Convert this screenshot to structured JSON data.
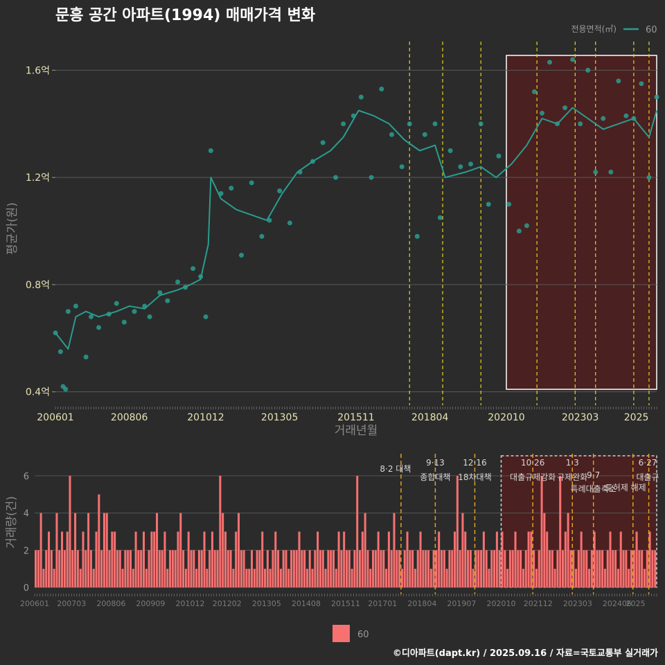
{
  "title": "문흥 공간 아파트(1994) 매매가격 변화",
  "footer": "©디아파트(dapt.kr) / 2025.09.16 / 자료=국토교통부 실거래가",
  "colors": {
    "background": "#2b2b2b",
    "series": "#2a9d8f",
    "bars": "#f87171",
    "highlight_fill": "#5a1d1d",
    "policy_line": "#e6d320",
    "title": "#ffffff",
    "tick": "#e8e3b5"
  },
  "chart_data": [
    {
      "type": "line",
      "title": "문흥 공간 아파트(1994) 매매가격 변화",
      "xlabel": "거래년월",
      "ylabel": "평균가(원)",
      "x_range": [
        "2006-01",
        "2025-09"
      ],
      "ylim": [
        0.35,
        1.72
      ],
      "y_unit": "억",
      "y_ticks": [
        "0.4억",
        "0.8억",
        "1.2억",
        "1.6억"
      ],
      "y_tick_values": [
        0.4,
        0.8,
        1.2,
        1.6
      ],
      "x_ticks": [
        "200601",
        "200806",
        "201012",
        "201305",
        "201511",
        "201804",
        "202010",
        "202303",
        "2025"
      ],
      "grid": true,
      "legend": {
        "title": "전용면적(㎡)",
        "placement": "top-right",
        "entries": [
          "60"
        ]
      },
      "highlight_range": [
        "2020-10",
        "2025-09"
      ],
      "policy_dates": [
        "2017-08",
        "2018-09",
        "2019-12",
        "2021-10",
        "2023-01",
        "2023-09",
        "2024-12",
        "2025-06"
      ],
      "series": [
        {
          "name": "60",
          "trend": [
            [
              "2006-01",
              0.62
            ],
            [
              "2006-06",
              0.56
            ],
            [
              "2006-09",
              0.68
            ],
            [
              "2007-01",
              0.7
            ],
            [
              "2007-06",
              0.68
            ],
            [
              "2008-01",
              0.7
            ],
            [
              "2008-06",
              0.72
            ],
            [
              "2008-12",
              0.71
            ],
            [
              "2009-06",
              0.76
            ],
            [
              "2010-01",
              0.78
            ],
            [
              "2010-06",
              0.8
            ],
            [
              "2010-10",
              0.82
            ],
            [
              "2011-01",
              0.95
            ],
            [
              "2011-02",
              1.2
            ],
            [
              "2011-06",
              1.12
            ],
            [
              "2011-12",
              1.08
            ],
            [
              "2012-06",
              1.06
            ],
            [
              "2012-12",
              1.04
            ],
            [
              "2013-06",
              1.14
            ],
            [
              "2013-12",
              1.22
            ],
            [
              "2014-06",
              1.26
            ],
            [
              "2015-01",
              1.3
            ],
            [
              "2015-06",
              1.35
            ],
            [
              "2015-12",
              1.45
            ],
            [
              "2016-06",
              1.43
            ],
            [
              "2016-12",
              1.4
            ],
            [
              "2017-06",
              1.34
            ],
            [
              "2017-12",
              1.3
            ],
            [
              "2018-06",
              1.32
            ],
            [
              "2018-10",
              1.2
            ],
            [
              "2019-06",
              1.22
            ],
            [
              "2019-12",
              1.24
            ],
            [
              "2020-06",
              1.2
            ],
            [
              "2020-12",
              1.25
            ],
            [
              "2021-06",
              1.32
            ],
            [
              "2021-12",
              1.42
            ],
            [
              "2022-06",
              1.4
            ],
            [
              "2022-12",
              1.46
            ],
            [
              "2023-06",
              1.42
            ],
            [
              "2023-12",
              1.38
            ],
            [
              "2024-06",
              1.4
            ],
            [
              "2024-12",
              1.42
            ],
            [
              "2025-06",
              1.35
            ],
            [
              "2025-09",
              1.45
            ]
          ],
          "points": [
            [
              "2006-01",
              0.62
            ],
            [
              "2006-03",
              0.55
            ],
            [
              "2006-04",
              0.42
            ],
            [
              "2006-05",
              0.41
            ],
            [
              "2006-06",
              0.7
            ],
            [
              "2006-09",
              0.72
            ],
            [
              "2007-01",
              0.53
            ],
            [
              "2007-03",
              0.68
            ],
            [
              "2007-06",
              0.64
            ],
            [
              "2007-10",
              0.69
            ],
            [
              "2008-01",
              0.73
            ],
            [
              "2008-04",
              0.66
            ],
            [
              "2008-08",
              0.7
            ],
            [
              "2008-12",
              0.72
            ],
            [
              "2009-02",
              0.68
            ],
            [
              "2009-06",
              0.77
            ],
            [
              "2009-09",
              0.74
            ],
            [
              "2010-01",
              0.81
            ],
            [
              "2010-04",
              0.79
            ],
            [
              "2010-07",
              0.86
            ],
            [
              "2010-10",
              0.83
            ],
            [
              "2010-12",
              0.68
            ],
            [
              "2011-02",
              1.3
            ],
            [
              "2011-06",
              1.14
            ],
            [
              "2011-10",
              1.16
            ],
            [
              "2012-02",
              0.91
            ],
            [
              "2012-06",
              1.18
            ],
            [
              "2012-10",
              0.98
            ],
            [
              "2013-01",
              1.04
            ],
            [
              "2013-05",
              1.15
            ],
            [
              "2013-09",
              1.03
            ],
            [
              "2014-01",
              1.22
            ],
            [
              "2014-06",
              1.26
            ],
            [
              "2014-10",
              1.33
            ],
            [
              "2015-03",
              1.2
            ],
            [
              "2015-06",
              1.4
            ],
            [
              "2015-10",
              1.43
            ],
            [
              "2016-01",
              1.5
            ],
            [
              "2016-05",
              1.2
            ],
            [
              "2016-09",
              1.53
            ],
            [
              "2017-01",
              1.36
            ],
            [
              "2017-05",
              1.24
            ],
            [
              "2017-08",
              1.4
            ],
            [
              "2017-11",
              0.98
            ],
            [
              "2018-02",
              1.36
            ],
            [
              "2018-06",
              1.4
            ],
            [
              "2018-08",
              1.05
            ],
            [
              "2018-12",
              1.3
            ],
            [
              "2019-04",
              1.24
            ],
            [
              "2019-08",
              1.25
            ],
            [
              "2019-12",
              1.4
            ],
            [
              "2020-03",
              1.1
            ],
            [
              "2020-07",
              1.28
            ],
            [
              "2020-11",
              1.1
            ],
            [
              "2021-03",
              1.0
            ],
            [
              "2021-06",
              1.02
            ],
            [
              "2021-09",
              1.52
            ],
            [
              "2021-12",
              1.44
            ],
            [
              "2022-03",
              1.63
            ],
            [
              "2022-06",
              1.4
            ],
            [
              "2022-09",
              1.46
            ],
            [
              "2022-12",
              1.64
            ],
            [
              "2023-03",
              1.4
            ],
            [
              "2023-06",
              1.6
            ],
            [
              "2023-09",
              1.22
            ],
            [
              "2023-12",
              1.42
            ],
            [
              "2024-03",
              1.22
            ],
            [
              "2024-06",
              1.56
            ],
            [
              "2024-09",
              1.43
            ],
            [
              "2024-12",
              1.42
            ],
            [
              "2025-03",
              1.55
            ],
            [
              "2025-06",
              1.2
            ],
            [
              "2025-09",
              1.5
            ]
          ]
        }
      ]
    },
    {
      "type": "bar",
      "ylabel": "거래량(건)",
      "x_range": [
        "2006-01",
        "2025-09"
      ],
      "ylim": [
        0,
        7
      ],
      "y_ticks": [
        "0",
        "2",
        "4",
        "6"
      ],
      "y_tick_values": [
        0,
        2,
        4,
        6
      ],
      "x_ticks": [
        "200601",
        "200703",
        "200806",
        "200909",
        "201012",
        "201202",
        "201305",
        "201408",
        "201511",
        "201701",
        "201804",
        "201907",
        "202010",
        "202112",
        "202303",
        "202406",
        "2025"
      ],
      "legend": {
        "placement": "bottom",
        "entries": [
          "60"
        ]
      },
      "highlight_range": [
        "2020-10",
        "2025-09"
      ],
      "annotations": [
        {
          "date": "2017-08",
          "lines": [
            "8·2 대책"
          ]
        },
        {
          "date": "2018-09",
          "lines": [
            "9·13",
            "종합대책"
          ]
        },
        {
          "date": "2019-12",
          "lines": [
            "12·16",
            "18차대책"
          ]
        },
        {
          "date": "2021-10",
          "lines": [
            "10·26",
            "대출규제강화"
          ]
        },
        {
          "date": "2023-01",
          "lines": [
            "1·3",
            "규제완화"
          ]
        },
        {
          "date": "2023-09",
          "lines": [
            "9·7",
            "특례대출축소"
          ]
        },
        {
          "date": "2025-06",
          "lines": [
            "6·27",
            "대출규"
          ]
        },
        {
          "date": "2025-03",
          "lines": [
            "토허제 해제"
          ]
        }
      ],
      "series": [
        {
          "name": "60",
          "values": [
            2,
            2,
            4,
            1,
            2,
            3,
            2,
            1,
            4,
            2,
            3,
            2,
            3,
            6,
            2,
            4,
            2,
            1,
            3,
            2,
            4,
            2,
            1,
            3,
            5,
            2,
            4,
            4,
            2,
            3,
            3,
            2,
            2,
            1,
            2,
            2,
            2,
            1,
            3,
            2,
            2,
            3,
            1,
            2,
            3,
            3,
            4,
            2,
            2,
            3,
            1,
            2,
            2,
            2,
            3,
            4,
            2,
            1,
            3,
            2,
            2,
            1,
            2,
            2,
            3,
            1,
            2,
            3,
            2,
            2,
            6,
            4,
            3,
            2,
            2,
            1,
            3,
            4,
            2,
            2,
            1,
            1,
            2,
            1,
            2,
            2,
            3,
            1,
            2,
            1,
            2,
            3,
            2,
            1,
            2,
            2,
            1,
            2,
            2,
            2,
            3,
            2,
            2,
            1,
            2,
            1,
            2,
            3,
            2,
            2,
            1,
            2,
            2,
            2,
            1,
            3,
            2,
            3,
            2,
            2,
            1,
            2,
            6,
            2,
            3,
            4,
            2,
            1,
            2,
            2,
            3,
            2,
            2,
            1,
            3,
            2,
            4,
            2,
            2,
            1,
            2,
            3,
            2,
            2,
            1,
            2,
            3,
            2,
            2,
            2,
            1,
            2,
            2,
            3,
            2,
            2,
            1,
            2,
            2,
            3,
            6,
            2,
            4,
            3,
            2,
            2,
            1,
            2,
            2,
            2,
            3,
            2,
            1,
            2,
            2,
            3,
            2,
            3,
            2,
            1,
            2,
            2,
            3,
            2,
            2,
            1,
            2,
            3,
            3,
            2,
            1,
            2,
            6,
            4,
            3,
            2,
            2,
            1,
            2,
            6,
            2,
            3,
            4,
            2,
            2,
            1,
            2,
            3,
            2,
            2,
            1,
            2,
            3,
            2,
            2,
            2,
            1,
            2,
            3,
            2,
            2,
            1,
            3,
            2,
            2,
            1,
            2,
            2,
            3,
            2,
            2,
            1,
            2,
            3,
            2,
            2
          ]
        }
      ]
    }
  ]
}
